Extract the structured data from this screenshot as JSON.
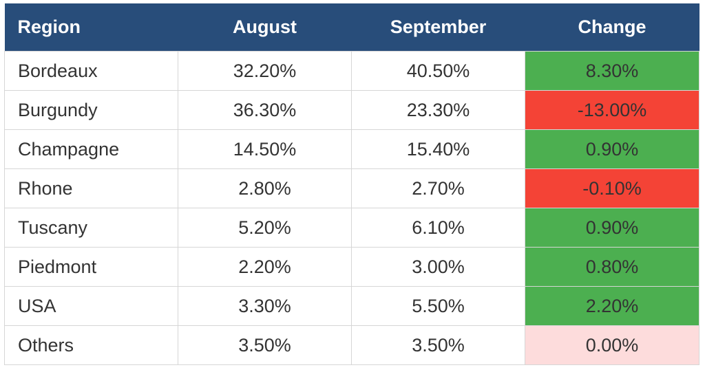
{
  "colors": {
    "header_bg": "#284d7a",
    "header_text": "#ffffff",
    "positive": "#4caf50",
    "negative": "#f44336",
    "neutral": "#fddcdc"
  },
  "table": {
    "headers": [
      "Region",
      "August",
      "September",
      "Change"
    ],
    "rows": [
      {
        "region": "Bordeaux",
        "august": "32.20%",
        "september": "40.50%",
        "change": "8.30%",
        "status": "positive"
      },
      {
        "region": "Burgundy",
        "august": "36.30%",
        "september": "23.30%",
        "change": "-13.00%",
        "status": "negative"
      },
      {
        "region": "Champagne",
        "august": "14.50%",
        "september": "15.40%",
        "change": "0.90%",
        "status": "positive"
      },
      {
        "region": "Rhone",
        "august": "2.80%",
        "september": "2.70%",
        "change": "-0.10%",
        "status": "negative"
      },
      {
        "region": "Tuscany",
        "august": "5.20%",
        "september": "6.10%",
        "change": "0.90%",
        "status": "positive"
      },
      {
        "region": "Piedmont",
        "august": "2.20%",
        "september": "3.00%",
        "change": "0.80%",
        "status": "positive"
      },
      {
        "region": "USA",
        "august": "3.30%",
        "september": "5.50%",
        "change": "2.20%",
        "status": "positive"
      },
      {
        "region": "Others",
        "august": "3.50%",
        "september": "3.50%",
        "change": "0.00%",
        "status": "neutral"
      }
    ]
  }
}
